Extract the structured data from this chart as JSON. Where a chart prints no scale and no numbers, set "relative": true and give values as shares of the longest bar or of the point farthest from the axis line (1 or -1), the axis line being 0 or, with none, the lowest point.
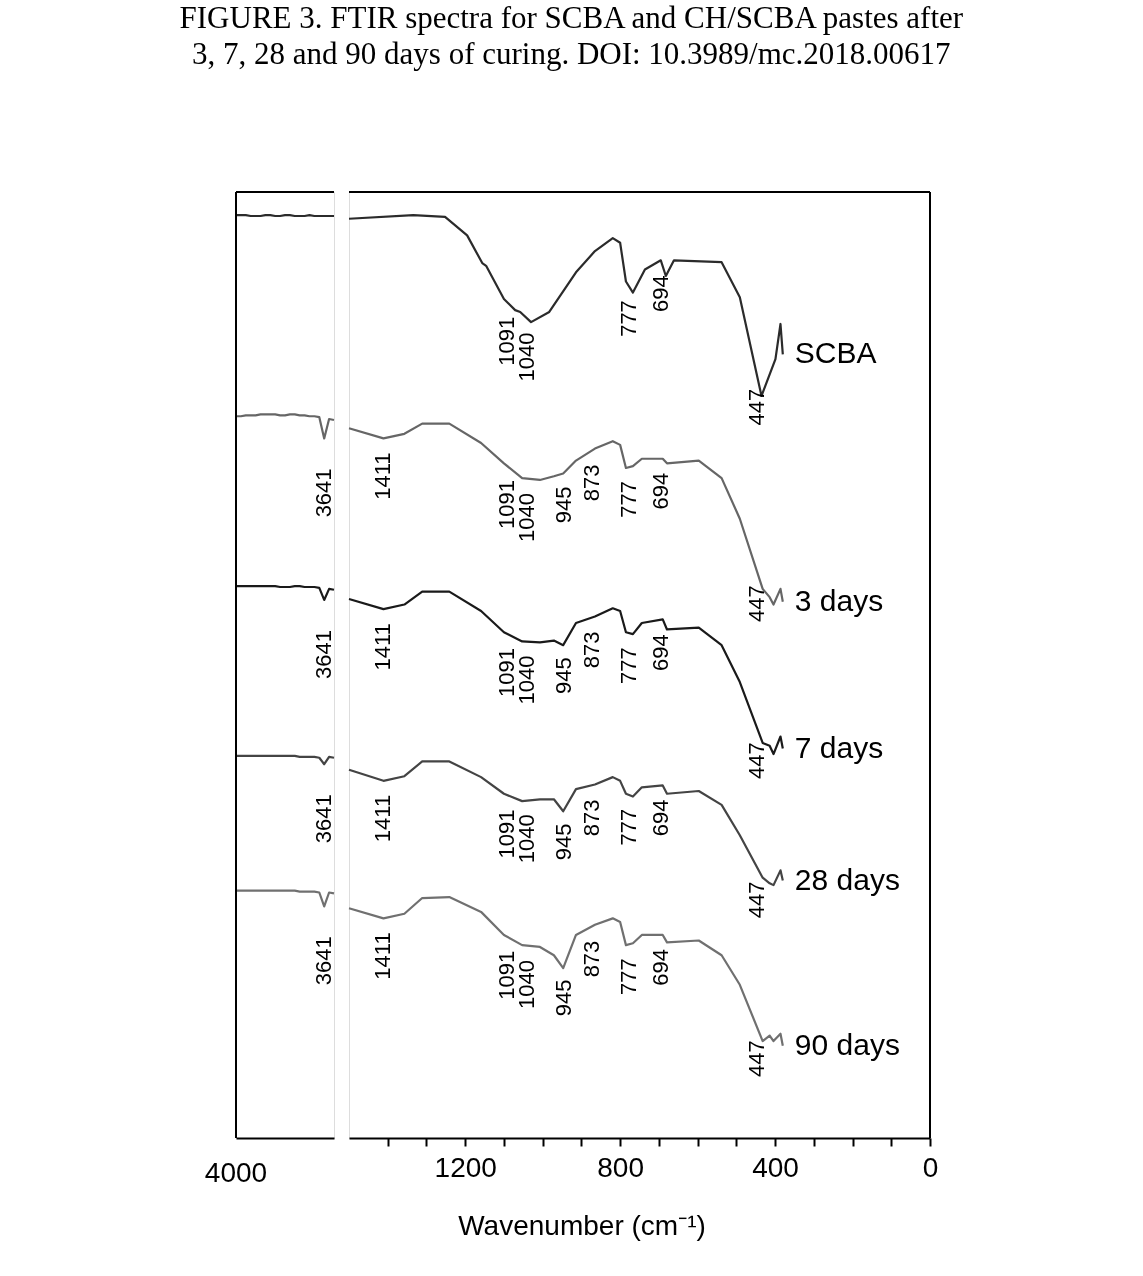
{
  "chart_data": [
    {
      "type": "line",
      "title": "FIGURE 3.    FTIR spectra for SCBA and CH/SCBA pastes after 3, 7, 28 and 90 days of curing. DOI: 10.3989/mc.2018.00617",
      "relative": true,
      "categories": [
        null,
        null,
        null,
        null,
        null,
        null,
        null,
        null,
        null,
        null,
        null,
        null,
        null,
        null,
        null,
        null,
        null,
        null,
        null,
        null,
        null
      ],
      "grid": false,
      "legend": false,
      "marker": "none",
      "line_style": "solid",
      "series": [
        {
          "color": "#2b2b2b",
          "values": [
            1.0,
            1.0,
            1.0,
            0.999,
            0.999,
            0.999,
            1.0,
            1.0,
            0.999,
            0.999,
            1.0,
            1.0,
            0.999,
            0.999,
            0.999,
            1.0,
            0.999,
            0.999,
            0.999,
            0.999,
            0.999
          ]
        },
        {
          "color": "#666666",
          "values": [
            0.782,
            0.782,
            0.783,
            0.783,
            0.783,
            0.784,
            0.784,
            0.784,
            0.784,
            0.783,
            0.783,
            0.784,
            0.784,
            0.783,
            0.783,
            0.782,
            0.782,
            0.781,
            0.758,
            0.779,
            0.778
          ]
        },
        {
          "color": "#1a1a1a",
          "values": [
            0.598,
            0.598,
            0.598,
            0.598,
            0.598,
            0.598,
            0.598,
            0.598,
            0.598,
            0.597,
            0.597,
            0.597,
            0.598,
            0.598,
            0.597,
            0.597,
            0.597,
            0.596,
            0.583,
            0.595,
            0.594
          ]
        },
        {
          "color": "#444444",
          "values": [
            0.414,
            0.414,
            0.414,
            0.414,
            0.414,
            0.414,
            0.414,
            0.414,
            0.414,
            0.414,
            0.414,
            0.414,
            0.414,
            0.413,
            0.413,
            0.413,
            0.413,
            0.412,
            0.405,
            0.413,
            0.412
          ]
        },
        {
          "color": "#707070",
          "values": [
            0.268,
            0.268,
            0.268,
            0.268,
            0.268,
            0.268,
            0.268,
            0.268,
            0.268,
            0.268,
            0.268,
            0.268,
            0.268,
            0.267,
            0.267,
            0.267,
            0.267,
            0.266,
            0.251,
            0.266,
            0.265
          ]
        }
      ],
      "annotations": [
        "4000",
        "3641",
        "3641",
        "3641",
        "3641"
      ]
    },
    {
      "type": "line",
      "xlabel": "Wavenumber (cm⁻¹)",
      "relative": true,
      "xlim": [
        1500,
        0
      ],
      "xticks": [
        {
          "value": 1400,
          "label": null
        },
        {
          "value": 1300,
          "label": null
        },
        1200,
        {
          "value": 1100,
          "label": null
        },
        {
          "value": 1000,
          "label": null
        },
        {
          "value": 900,
          "label": null
        },
        800,
        {
          "value": 700,
          "label": null
        },
        {
          "value": 600,
          "label": null
        },
        {
          "value": 500,
          "label": null
        },
        400,
        {
          "value": 300,
          "label": null
        },
        {
          "value": 200,
          "label": null
        },
        {
          "value": 100,
          "label": null
        },
        0
      ],
      "grid": false,
      "legend": false,
      "marker": "none",
      "line_style": "solid",
      "series": [
        {
          "name": "SCBA",
          "color": "#2b2b2b",
          "x": [
            1500,
            1334,
            1252,
            1195,
            1156,
            1146,
            1100,
            1071,
            1058,
            1030,
            983,
            914,
            865,
            819,
            800,
            785,
            767,
            736,
            695,
            682,
            661,
            538,
            491,
            435,
            399,
            386,
            380
          ],
          "values": [
            0.996,
            1.0,
            0.998,
            0.978,
            0.948,
            0.945,
            0.909,
            0.897,
            0.895,
            0.884,
            0.895,
            0.938,
            0.961,
            0.975,
            0.97,
            0.928,
            0.916,
            0.941,
            0.951,
            0.934,
            0.951,
            0.949,
            0.911,
            0.804,
            0.844,
            0.882,
            0.849
          ]
        },
        {
          "name": "3 days",
          "color": "#666666",
          "x": [
            1500,
            1411,
            1357,
            1311,
            1241,
            1159,
            1100,
            1053,
            1007,
            971,
            947,
            914,
            865,
            819,
            800,
            785,
            767,
            744,
            690,
            679,
            597,
            538,
            491,
            432,
            414,
            404,
            386,
            380
          ],
          "values": [
            0.769,
            0.758,
            0.763,
            0.774,
            0.774,
            0.753,
            0.731,
            0.715,
            0.713,
            0.717,
            0.72,
            0.734,
            0.747,
            0.755,
            0.751,
            0.726,
            0.728,
            0.736,
            0.736,
            0.731,
            0.734,
            0.715,
            0.671,
            0.595,
            0.586,
            0.578,
            0.595,
            0.581
          ]
        },
        {
          "name": "7 days",
          "color": "#1a1a1a",
          "x": [
            1500,
            1411,
            1357,
            1311,
            1241,
            1159,
            1100,
            1053,
            1007,
            971,
            947,
            914,
            865,
            819,
            800,
            785,
            767,
            744,
            690,
            679,
            597,
            538,
            491,
            432,
            414,
            404,
            386,
            380
          ],
          "values": [
            0.584,
            0.573,
            0.578,
            0.592,
            0.592,
            0.571,
            0.548,
            0.538,
            0.537,
            0.539,
            0.534,
            0.558,
            0.565,
            0.574,
            0.571,
            0.548,
            0.546,
            0.558,
            0.562,
            0.551,
            0.553,
            0.534,
            0.494,
            0.428,
            0.425,
            0.416,
            0.435,
            0.422
          ]
        },
        {
          "name": "28 days",
          "color": "#444444",
          "x": [
            1500,
            1411,
            1357,
            1311,
            1241,
            1159,
            1100,
            1053,
            1007,
            971,
            947,
            914,
            865,
            819,
            800,
            785,
            767,
            744,
            690,
            679,
            597,
            538,
            491,
            432,
            414,
            404,
            386,
            380
          ],
          "values": [
            0.399,
            0.387,
            0.392,
            0.408,
            0.408,
            0.391,
            0.373,
            0.365,
            0.367,
            0.367,
            0.354,
            0.378,
            0.383,
            0.391,
            0.387,
            0.373,
            0.37,
            0.38,
            0.382,
            0.373,
            0.376,
            0.361,
            0.328,
            0.282,
            0.276,
            0.274,
            0.29,
            0.279
          ]
        },
        {
          "name": "90 days",
          "color": "#707070",
          "x": [
            1500,
            1411,
            1357,
            1311,
            1241,
            1159,
            1100,
            1053,
            1007,
            971,
            947,
            914,
            865,
            819,
            800,
            785,
            767,
            744,
            690,
            679,
            597,
            538,
            491,
            432,
            414,
            404,
            386,
            380
          ],
          "values": [
            0.249,
            0.238,
            0.243,
            0.26,
            0.261,
            0.245,
            0.22,
            0.209,
            0.207,
            0.198,
            0.184,
            0.22,
            0.231,
            0.238,
            0.234,
            0.209,
            0.211,
            0.22,
            0.22,
            0.212,
            0.214,
            0.198,
            0.166,
            0.105,
            0.111,
            0.105,
            0.113,
            0.1
          ]
        }
      ],
      "annotations": [
        {
          "text": "1091",
          "x": 1091,
          "y": 0.905
        },
        {
          "text": "1040",
          "x": 1040,
          "y": 0.888
        },
        {
          "text": "777",
          "x": 777,
          "y": 0.923
        },
        {
          "text": "694",
          "x": 694,
          "y": 0.95
        },
        {
          "text": "447",
          "x": 447,
          "y": 0.827
        },
        {
          "text": "1411",
          "x": 1411,
          "y": 0.758
        },
        {
          "text": "1091",
          "x": 1091,
          "y": 0.728
        },
        {
          "text": "1040",
          "x": 1040,
          "y": 0.714
        },
        {
          "text": "945",
          "x": 945,
          "y": 0.721
        },
        {
          "text": "873",
          "x": 873,
          "y": 0.745
        },
        {
          "text": "777",
          "x": 777,
          "y": 0.727
        },
        {
          "text": "694",
          "x": 694,
          "y": 0.736
        },
        {
          "text": "447",
          "x": 447,
          "y": 0.614
        },
        {
          "text": "1411",
          "x": 1411,
          "y": 0.573
        },
        {
          "text": "1091",
          "x": 1091,
          "y": 0.546
        },
        {
          "text": "1040",
          "x": 1040,
          "y": 0.538
        },
        {
          "text": "945",
          "x": 945,
          "y": 0.536
        },
        {
          "text": "873",
          "x": 873,
          "y": 0.564
        },
        {
          "text": "777",
          "x": 777,
          "y": 0.547
        },
        {
          "text": "694",
          "x": 694,
          "y": 0.561
        },
        {
          "text": "447",
          "x": 447,
          "y": 0.444
        },
        {
          "text": "1411",
          "x": 1411,
          "y": 0.387
        },
        {
          "text": "1091",
          "x": 1091,
          "y": 0.371
        },
        {
          "text": "1040",
          "x": 1040,
          "y": 0.366
        },
        {
          "text": "945",
          "x": 945,
          "y": 0.356
        },
        {
          "text": "873",
          "x": 873,
          "y": 0.382
        },
        {
          "text": "777",
          "x": 777,
          "y": 0.372
        },
        {
          "text": "694",
          "x": 694,
          "y": 0.382
        },
        {
          "text": "447",
          "x": 447,
          "y": 0.293
        },
        {
          "text": "1411",
          "x": 1411,
          "y": 0.238
        },
        {
          "text": "1091",
          "x": 1091,
          "y": 0.218
        },
        {
          "text": "1040",
          "x": 1040,
          "y": 0.208
        },
        {
          "text": "945",
          "x": 945,
          "y": 0.187
        },
        {
          "text": "873",
          "x": 873,
          "y": 0.229
        },
        {
          "text": "777",
          "x": 777,
          "y": 0.21
        },
        {
          "text": "694",
          "x": 694,
          "y": 0.22
        },
        {
          "text": "447",
          "x": 447,
          "y": 0.121
        }
      ]
    }
  ]
}
